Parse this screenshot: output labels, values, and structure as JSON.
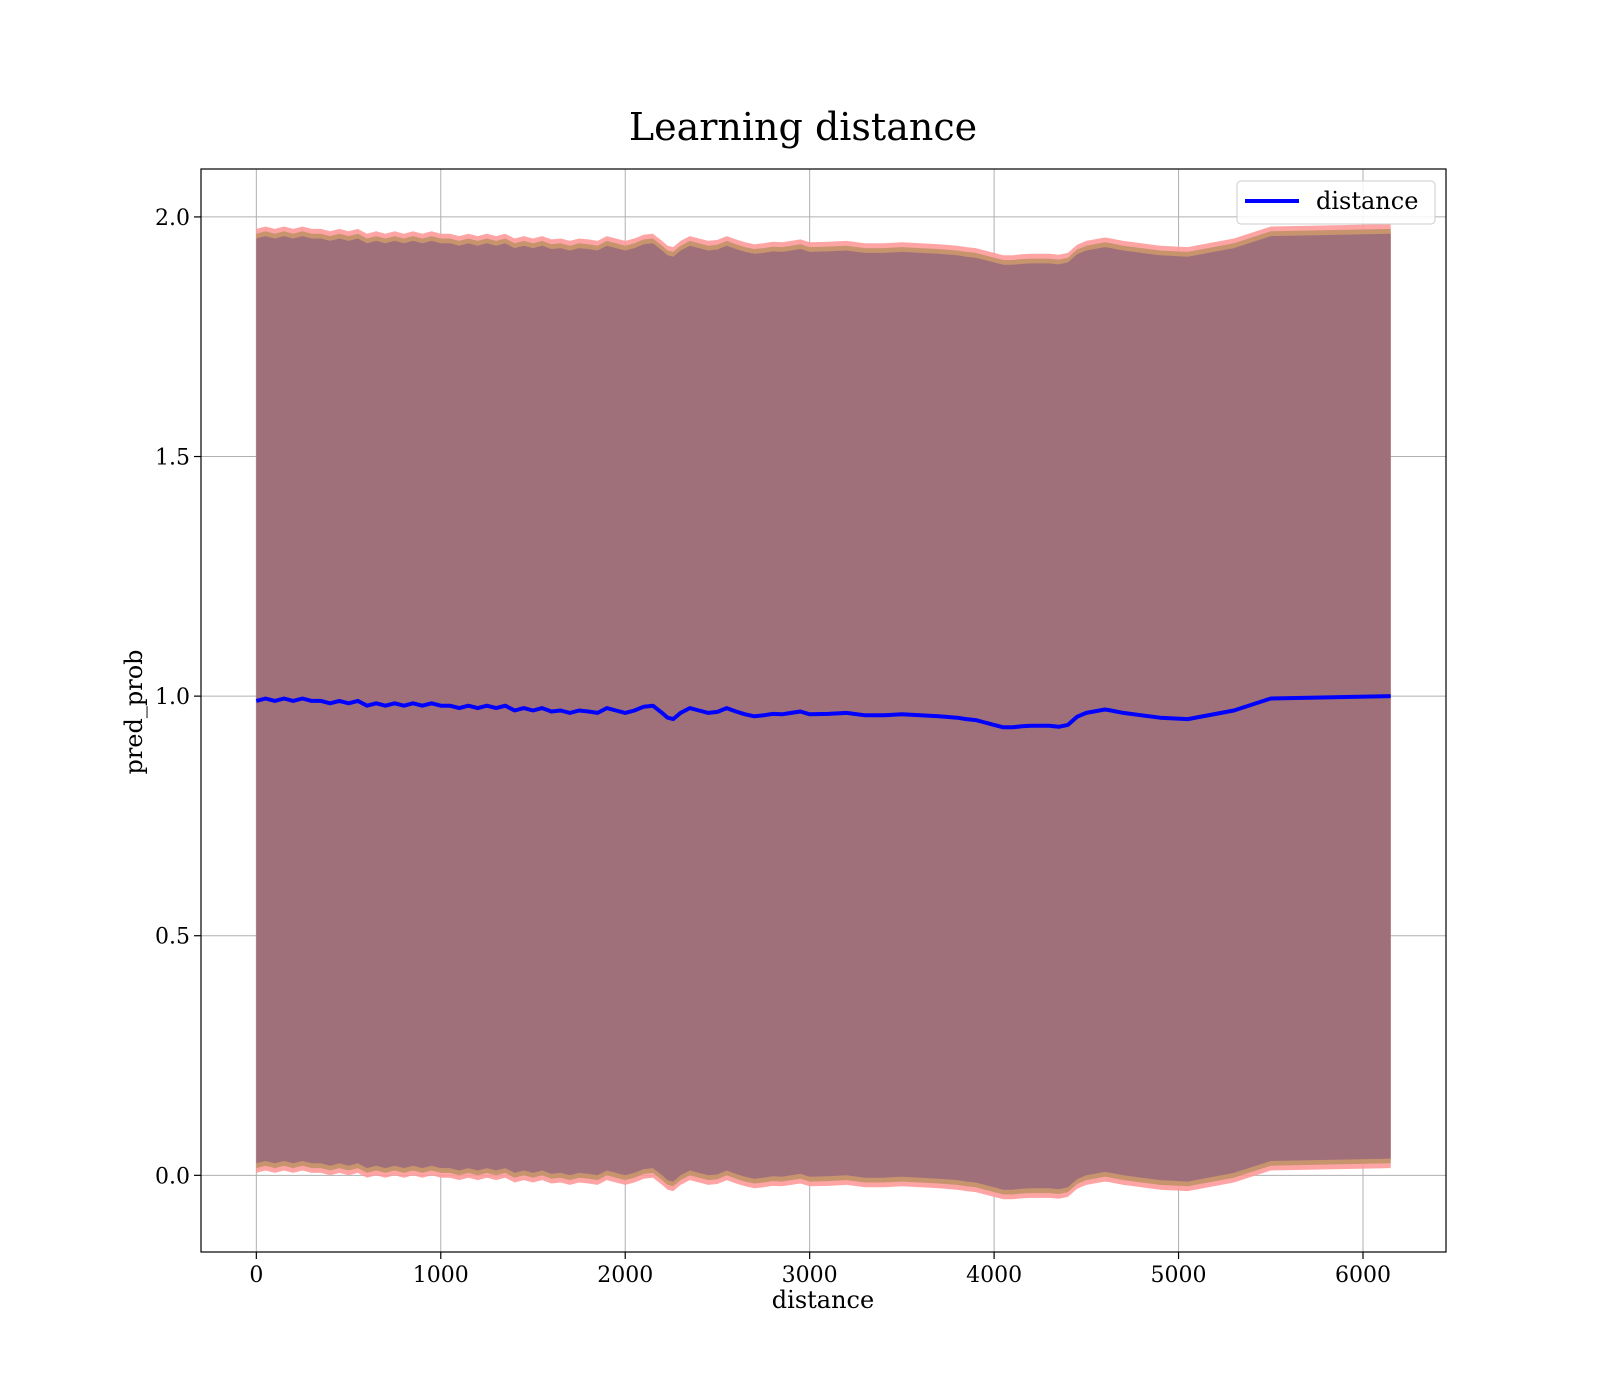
{
  "chart_data": {
    "type": "line",
    "title": "Learning distance",
    "xlabel": "distance",
    "ylabel": "pred_prob",
    "xlim": [
      -300,
      6450
    ],
    "ylim": [
      -0.16,
      2.1
    ],
    "xticks": [
      0,
      1000,
      2000,
      3000,
      4000,
      5000,
      6000
    ],
    "xtick_labels": [
      "0",
      "1000",
      "2000",
      "3000",
      "4000",
      "5000",
      "6000"
    ],
    "yticks": [
      0.0,
      0.5,
      1.0,
      1.5,
      2.0
    ],
    "ytick_labels": [
      "0.0",
      "0.5",
      "1.0",
      "1.5",
      "2.0"
    ],
    "grid": true,
    "legend": {
      "position": "top-right",
      "entries": [
        "distance"
      ]
    },
    "colors": {
      "line": "#0000ff",
      "band_outer": "#ff9a9a",
      "band_mid": "#c8946e",
      "band_inner": "#a0707a"
    },
    "series": [
      {
        "name": "distance",
        "x": [
          0,
          50,
          100,
          150,
          200,
          250,
          300,
          350,
          400,
          450,
          500,
          550,
          600,
          650,
          700,
          750,
          800,
          850,
          900,
          950,
          1000,
          1050,
          1100,
          1150,
          1200,
          1250,
          1300,
          1350,
          1400,
          1450,
          1500,
          1550,
          1600,
          1650,
          1700,
          1750,
          1800,
          1850,
          1900,
          1950,
          2000,
          2050,
          2100,
          2150,
          2200,
          2230,
          2260,
          2300,
          2350,
          2400,
          2450,
          2500,
          2550,
          2600,
          2650,
          2700,
          2750,
          2800,
          2850,
          2900,
          2950,
          3000,
          3100,
          3200,
          3300,
          3400,
          3500,
          3600,
          3700,
          3800,
          3850,
          3900,
          3950,
          4000,
          4050,
          4100,
          4150,
          4200,
          4300,
          4350,
          4400,
          4450,
          4500,
          4600,
          4620,
          4700,
          4800,
          4900,
          5050,
          5300,
          5500,
          6150
        ],
        "y": [
          0.99,
          0.995,
          0.99,
          0.995,
          0.99,
          0.995,
          0.99,
          0.99,
          0.985,
          0.99,
          0.985,
          0.99,
          0.98,
          0.985,
          0.98,
          0.985,
          0.98,
          0.985,
          0.98,
          0.985,
          0.98,
          0.98,
          0.975,
          0.98,
          0.975,
          0.98,
          0.975,
          0.98,
          0.97,
          0.975,
          0.97,
          0.975,
          0.968,
          0.97,
          0.965,
          0.97,
          0.968,
          0.965,
          0.975,
          0.97,
          0.965,
          0.97,
          0.978,
          0.98,
          0.965,
          0.955,
          0.952,
          0.965,
          0.975,
          0.97,
          0.965,
          0.967,
          0.975,
          0.968,
          0.962,
          0.958,
          0.96,
          0.963,
          0.962,
          0.965,
          0.968,
          0.962,
          0.963,
          0.965,
          0.96,
          0.96,
          0.962,
          0.96,
          0.958,
          0.955,
          0.952,
          0.95,
          0.945,
          0.94,
          0.935,
          0.935,
          0.937,
          0.938,
          0.938,
          0.936,
          0.94,
          0.957,
          0.965,
          0.972,
          0.971,
          0.965,
          0.96,
          0.955,
          0.952,
          0.97,
          0.995,
          1.0
        ],
        "band_outer_halfwidth": 0.985,
        "band_mid_halfwidth": 0.975,
        "band_inner_halfwidth": 0.965
      }
    ]
  }
}
